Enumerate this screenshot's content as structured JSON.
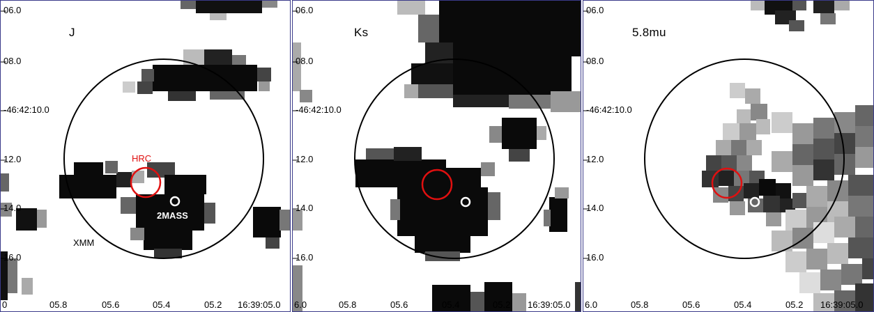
{
  "colors": {
    "hrc": "#e01010",
    "xmm": "#000000",
    "twomass": "#ffffff",
    "border": "#3a3a8a"
  },
  "annotations": {
    "hrc": "HRC",
    "twomass": "2MASS",
    "xmm": "XMM"
  },
  "panels": [
    {
      "band": "J",
      "yticks": [
        "06.0",
        "08.0",
        "-46:42:10.0",
        "12.0",
        "14.0",
        "16.0"
      ],
      "xticks": [
        "0",
        "05.8",
        "05.6",
        "05.4",
        "05.2",
        "16:39:05.0"
      ]
    },
    {
      "band": "Ks",
      "yticks": [
        "06.0",
        "08.0",
        "-46:42:10.0",
        "12.0",
        "14.0",
        "16.0"
      ],
      "xticks": [
        "6.0",
        "05.8",
        "05.6",
        "05.4",
        "05.2",
        "16:39:05.0"
      ]
    },
    {
      "band": "5.8mu",
      "yticks": [
        "06.0",
        "08.0",
        "-46:42:10.0",
        "12.0",
        "14.0",
        "16.0"
      ],
      "xticks": [
        "6.0",
        "05.8",
        "05.6",
        "05.4",
        "05.2",
        "16:39:05.0"
      ]
    }
  ]
}
